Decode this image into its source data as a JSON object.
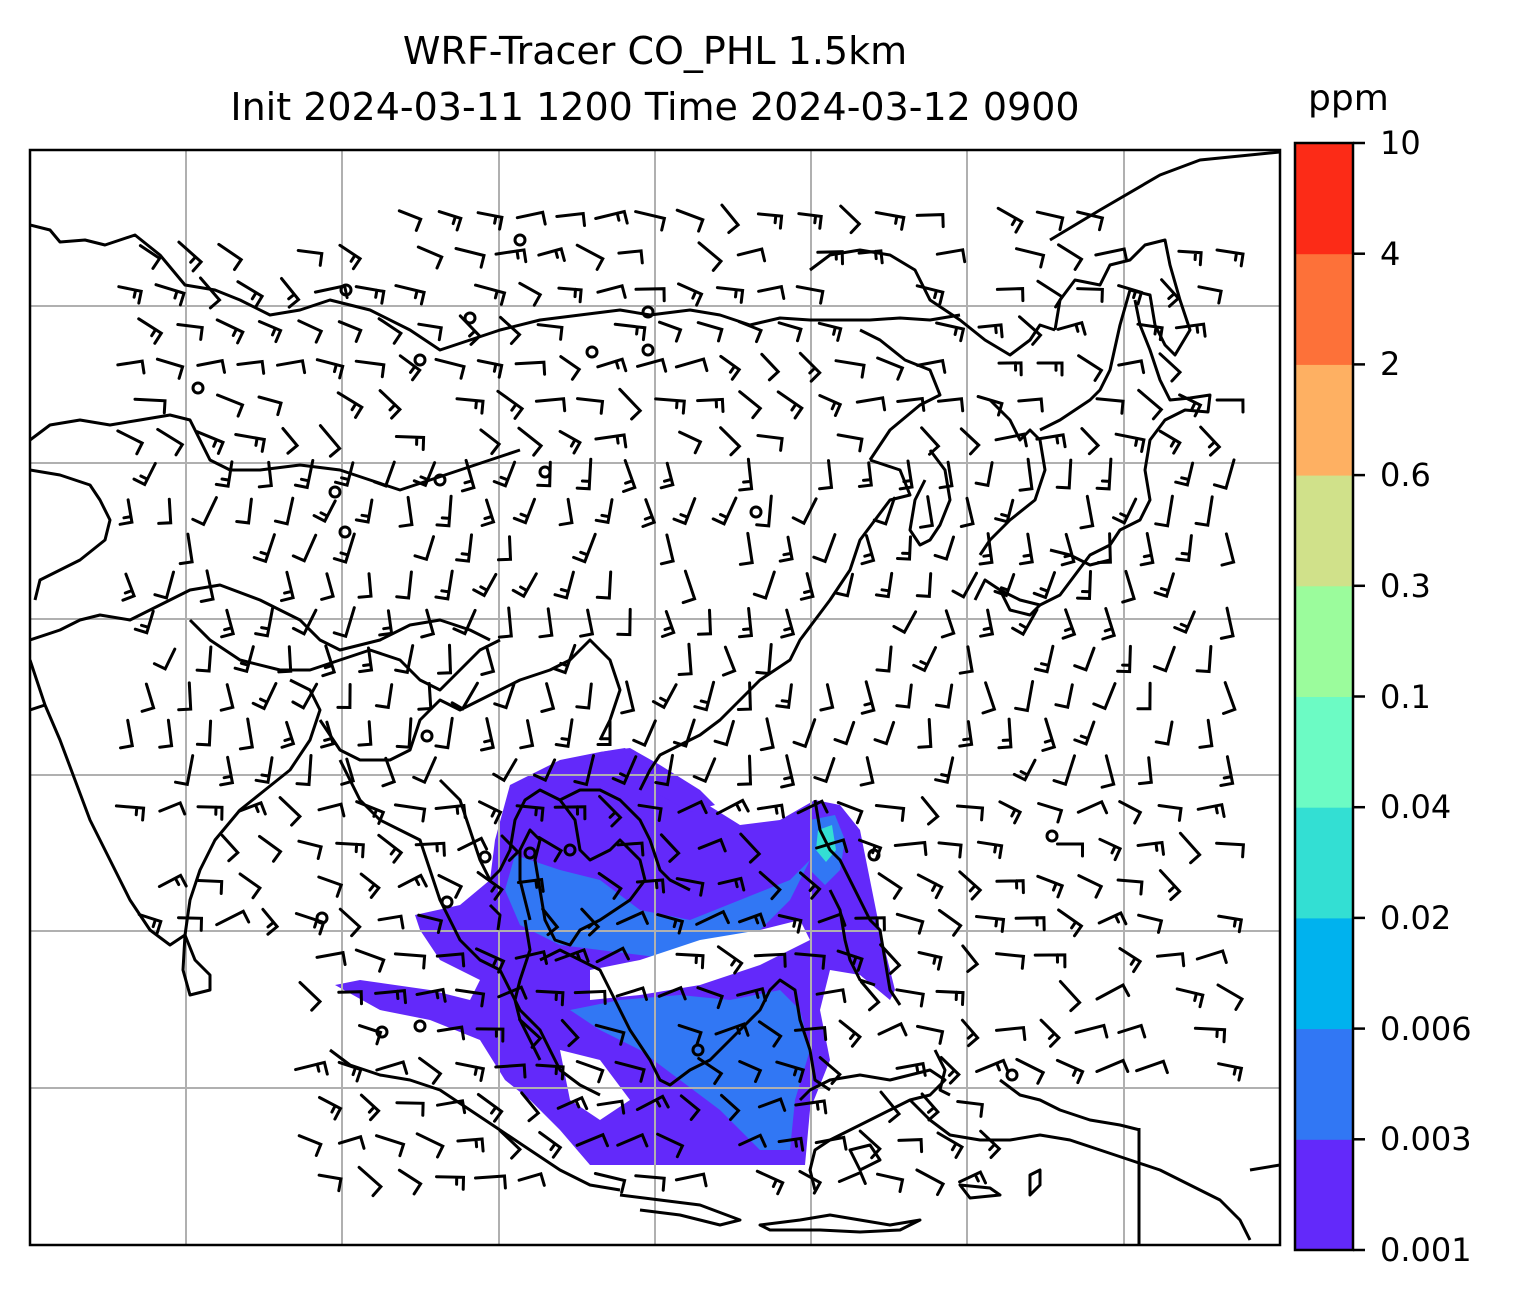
{
  "title_line1": "WRF-Tracer CO_PHL 1.5km",
  "title_line2": "Init 2024-03-11 1200 Time 2024-03-12 0900",
  "colorbar": {
    "unit": "ppm",
    "levels": [
      "0.001",
      "0.003",
      "0.006",
      "0.02",
      "0.04",
      "0.1",
      "0.3",
      "0.6",
      "2",
      "4",
      "10"
    ],
    "colors": [
      "#6329fa",
      "#3177f4",
      "#00b2ee",
      "#33dfd3",
      "#6cfbc4",
      "#9bfc9c",
      "#d0e18a",
      "#feb062",
      "#fd7139",
      "#fc2b17"
    ]
  },
  "map": {
    "plume_color_low": "#6329fa",
    "plume_color_mid": "#3177f4",
    "plume_color_high": "#33dfd3",
    "gridline_color": "#b0b0b0",
    "coastline_color": "#000000"
  }
}
